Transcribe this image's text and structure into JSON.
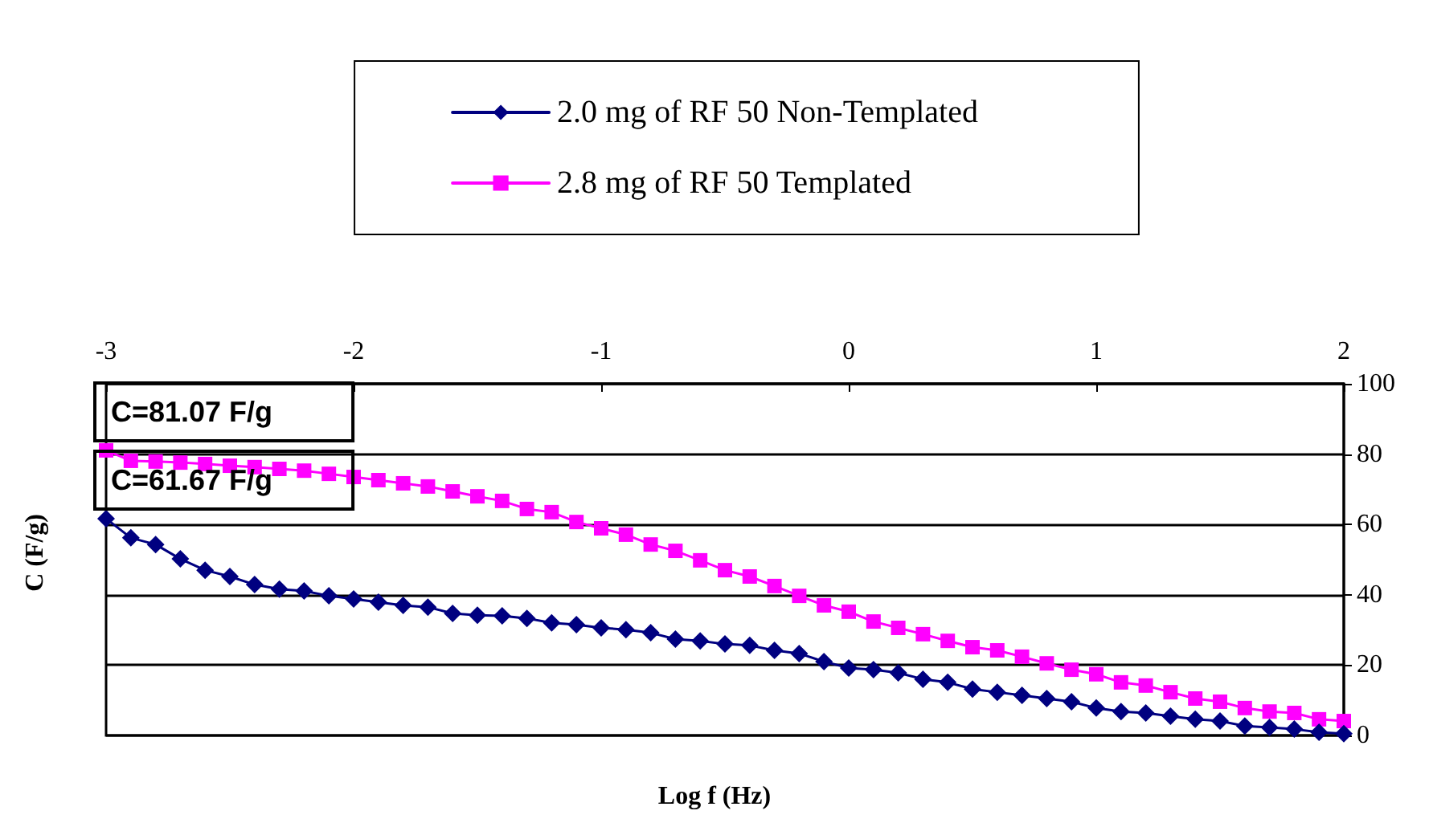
{
  "chart_data": {
    "type": "line",
    "xlabel": "Log f (Hz)",
    "ylabel": "C (F/g)",
    "x": [
      -3,
      -2.9,
      -2.8,
      -2.7,
      -2.6,
      -2.5,
      -2.4,
      -2.3,
      -2.2,
      -2.1,
      -2,
      -1.9,
      -1.8,
      -1.7,
      -1.6,
      -1.5,
      -1.4,
      -1.3,
      -1.2,
      -1.1,
      -1,
      -0.9,
      -0.8,
      -0.7,
      -0.6,
      -0.5,
      -0.4,
      -0.3,
      -0.2,
      -0.1,
      0,
      0.1,
      0.2,
      0.3,
      0.4,
      0.5,
      0.6,
      0.7,
      0.8,
      0.9,
      1,
      1.1,
      1.2,
      1.3,
      1.4,
      1.5,
      1.6,
      1.7,
      1.8,
      1.9,
      2
    ],
    "series": [
      {
        "name": "2.0 mg of RF 50 Non-Templated",
        "color": "#000080",
        "marker": "diamond",
        "values": [
          61.67,
          56.2,
          54.3,
          50.2,
          47.0,
          45.2,
          42.9,
          41.6,
          41.1,
          39.7,
          38.8,
          37.9,
          37.0,
          36.5,
          34.7,
          34.2,
          34.0,
          33.3,
          32.0,
          31.5,
          30.6,
          30.1,
          29.2,
          27.4,
          26.9,
          26.0,
          25.6,
          24.2,
          23.3,
          21.0,
          19.2,
          18.7,
          17.8,
          16.0,
          15.1,
          13.2,
          12.3,
          11.4,
          10.5,
          9.6,
          7.8,
          6.8,
          6.4,
          5.5,
          4.6,
          4.1,
          2.7,
          2.3,
          1.8,
          0.9,
          0.5
        ]
      },
      {
        "name": "2.8 mg of RF 50 Templated",
        "color": "#ff00ff",
        "marker": "square",
        "values": [
          81.07,
          78.1,
          77.9,
          77.6,
          77.2,
          76.7,
          76.3,
          75.8,
          75.3,
          74.4,
          73.5,
          72.6,
          71.7,
          70.8,
          69.4,
          68.0,
          66.7,
          64.4,
          63.5,
          60.7,
          58.9,
          57.1,
          54.3,
          52.5,
          49.8,
          47.0,
          45.2,
          42.5,
          39.7,
          37.0,
          35.2,
          32.4,
          30.6,
          28.8,
          26.9,
          25.1,
          24.2,
          22.4,
          20.5,
          18.7,
          17.4,
          15.1,
          14.2,
          12.3,
          10.5,
          9.6,
          7.8,
          6.8,
          6.4,
          4.6,
          4.1
        ]
      }
    ],
    "annotations": [
      {
        "text": "C=81.07 F/g",
        "x": -3,
        "y": 81.07
      },
      {
        "text": "C=61.67 F/g",
        "x": -3,
        "y": 61.67
      }
    ],
    "xlim": [
      -3,
      2
    ],
    "xticks": [
      -3,
      -2,
      -1,
      0,
      1,
      2
    ],
    "ylim": [
      0,
      100
    ],
    "yticks": [
      0,
      20,
      40,
      60,
      80,
      100
    ],
    "grid": "y",
    "legend": "top",
    "line_style": "solid"
  }
}
